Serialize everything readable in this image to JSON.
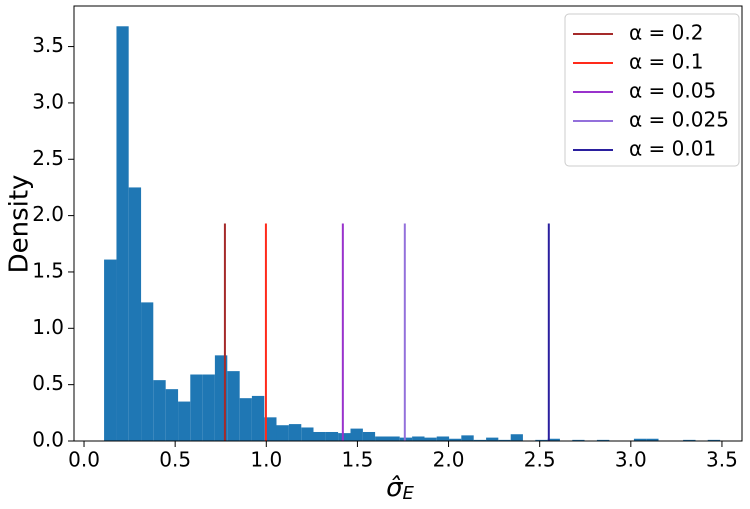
{
  "chart_data": {
    "type": "histogram",
    "x_label": {
      "symbol": "σ̂",
      "subscript": "E"
    },
    "y_label": "Density",
    "color": "#1f77b4",
    "bins": [
      0.11,
      0.178,
      0.245,
      0.313,
      0.38,
      0.448,
      0.516,
      0.583,
      0.651,
      0.718,
      0.786,
      0.854,
      0.921,
      0.989,
      1.056,
      1.124,
      1.192,
      1.259,
      1.327,
      1.394,
      1.462,
      1.53,
      1.597,
      1.665,
      1.732,
      1.8,
      1.868,
      1.935,
      2.003,
      2.07,
      2.138,
      2.206,
      2.273,
      2.341,
      2.408,
      2.476,
      2.544,
      2.611,
      2.679,
      2.746,
      2.814,
      2.882,
      2.949,
      3.017,
      3.084,
      3.152,
      3.22,
      3.287,
      3.355,
      3.422,
      3.49
    ],
    "values": [
      1.61,
      3.68,
      2.25,
      1.23,
      0.54,
      0.46,
      0.35,
      0.59,
      0.59,
      0.76,
      0.62,
      0.38,
      0.4,
      0.21,
      0.14,
      0.15,
      0.12,
      0.08,
      0.08,
      0.07,
      0.11,
      0.08,
      0.04,
      0.04,
      0.03,
      0.04,
      0.03,
      0.04,
      0.02,
      0.05,
      0.01,
      0.03,
      0.01,
      0.06,
      0,
      0.01,
      0.02,
      0,
      0.01,
      0,
      0.01,
      0,
      0,
      0.02,
      0.02,
      0,
      0,
      0.01,
      0,
      0.01
    ],
    "thresholds": [
      {
        "name": "α = 0.2",
        "color": "#a52a2a",
        "x": 0.773,
        "height": 1.93
      },
      {
        "name": "α = 0.1",
        "color": "#ff2a1a",
        "x": 0.998,
        "height": 1.93
      },
      {
        "name": "α = 0.05",
        "color": "#9932cc",
        "x": 1.42,
        "height": 1.93
      },
      {
        "name": "α = 0.025",
        "color": "#9370db",
        "x": 1.76,
        "height": 1.93
      },
      {
        "name": "α = 0.01",
        "color": "#2a1f9e",
        "x": 2.55,
        "height": 1.93
      }
    ],
    "legend": "upper right",
    "xlim": [
      -0.055,
      3.61
    ],
    "ylim": [
      0,
      3.86
    ],
    "xticks": [
      {
        "value": 0,
        "label": "0.0"
      },
      0.5,
      {
        "value": 1,
        "label": "1.0"
      },
      1.5,
      {
        "value": 2,
        "label": "2.0"
      },
      2.5,
      {
        "value": 3,
        "label": "3.0"
      },
      3.5
    ],
    "yticks": [
      {
        "value": 0,
        "label": "0.0"
      },
      0.5,
      {
        "value": 1,
        "label": "1.0"
      },
      1.5,
      {
        "value": 2,
        "label": "2.0"
      },
      2.5,
      {
        "value": 3,
        "label": "3.0"
      },
      3.5
    ]
  }
}
